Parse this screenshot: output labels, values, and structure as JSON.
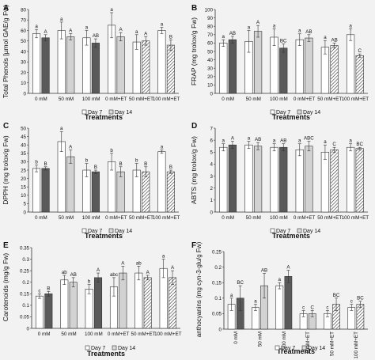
{
  "chart_data": [
    {
      "panel": "A",
      "type": "bar",
      "categories": [
        "0 mM",
        "50 mM",
        "100 mM",
        "0 mM+ET",
        "50 mM+ET",
        "100 mM+ET"
      ],
      "xlabel": "Treatments",
      "ylabel": "Total Phenols [µmol GAE/g Fw)",
      "ylim": [
        0,
        80
      ],
      "yticks": [
        "0",
        "10",
        "20",
        "30",
        "40",
        "50",
        "60",
        "70",
        "80"
      ],
      "series": [
        {
          "name": "Day 7",
          "values": [
            57,
            60,
            53,
            65,
            49,
            60
          ],
          "errors": [
            4,
            8,
            7,
            12,
            7,
            3
          ],
          "letters": [
            "a",
            "a",
            "a",
            "a",
            "a",
            "a"
          ]
        },
        {
          "name": "Day 14",
          "values": [
            53,
            54,
            48,
            54,
            50,
            46
          ],
          "errors": [
            3,
            3,
            4,
            4,
            4,
            5
          ],
          "letters": [
            "A",
            "A",
            "AB",
            "A",
            "A",
            "B"
          ]
        }
      ]
    },
    {
      "panel": "B",
      "type": "bar",
      "categories": [
        "0 mM",
        "50 mM",
        "100 mM",
        "0 mM+ET",
        "50 mM+ET",
        "100 mM+ET"
      ],
      "xlabel": "Treatments",
      "ylabel": "FRAP (mg trolox/g Fw)",
      "ylim": [
        0,
        100
      ],
      "yticks": [
        "0",
        "10",
        "20",
        "30",
        "40",
        "50",
        "60",
        "70",
        "80",
        "90",
        "100"
      ],
      "series": [
        {
          "name": "Day 7",
          "values": [
            60,
            62,
            67,
            64,
            55,
            70
          ],
          "errors": [
            4,
            13,
            10,
            7,
            8,
            7
          ],
          "letters": [
            "a",
            "a",
            "a",
            "a",
            "a",
            "a"
          ]
        },
        {
          "name": "Day 14",
          "values": [
            64,
            74,
            54,
            66,
            57,
            45
          ],
          "errors": [
            4,
            7,
            5,
            4,
            3,
            2
          ],
          "letters": [
            "AB",
            "A",
            "BC",
            "AB",
            "AB",
            "C"
          ]
        }
      ]
    },
    {
      "panel": "C",
      "type": "bar",
      "categories": [
        "0 mM",
        "50 mM",
        "100 mM",
        "0 mM+ET",
        "50 mM+ET",
        "100 mM+ET"
      ],
      "xlabel": "Treatments",
      "ylabel": "DPPH (mg trolox/g Fw)",
      "ylim": [
        0,
        50
      ],
      "yticks": [
        "0",
        "5",
        "10",
        "15",
        "20",
        "25",
        "30",
        "35",
        "40",
        "45",
        "50"
      ],
      "series": [
        {
          "name": "Day 7",
          "values": [
            26,
            42,
            25,
            30,
            25,
            36
          ],
          "errors": [
            2,
            6,
            4,
            5,
            4,
            1
          ],
          "letters": [
            "b",
            "a",
            "b",
            "b",
            "b",
            "a"
          ]
        },
        {
          "name": "Day 14",
          "values": [
            26,
            33,
            24,
            24,
            24,
            24
          ],
          "errors": [
            1,
            4,
            1,
            3,
            3,
            1
          ],
          "letters": [
            "B",
            "A",
            "B",
            "B",
            "B",
            "B"
          ]
        }
      ]
    },
    {
      "panel": "D",
      "type": "bar",
      "categories": [
        "0 mM",
        "50 mM",
        "100 mM",
        "0 mM+ET",
        "50 mM+ET",
        "100 mM+ET"
      ],
      "xlabel": "Treatments",
      "ylabel": "ABTS (mg trolox/g Fw)",
      "ylim": [
        0,
        7
      ],
      "yticks": [
        "0",
        "1",
        "2",
        "3",
        "4",
        "5",
        "6",
        "7"
      ],
      "series": [
        {
          "name": "Day 7",
          "values": [
            5.4,
            5.6,
            5.4,
            5.2,
            5.0,
            5.4
          ],
          "errors": [
            0.3,
            0.3,
            0.3,
            0.5,
            0.6,
            0.3
          ],
          "letters": [
            "a",
            "a",
            "a",
            "a",
            "a",
            "a"
          ]
        },
        {
          "name": "Day 14",
          "values": [
            5.6,
            5.5,
            5.4,
            5.5,
            5.2,
            5.3
          ],
          "errors": [
            0.3,
            0.3,
            0.3,
            0.4,
            0.2,
            0.1
          ],
          "letters": [
            "A",
            "AB",
            "AB",
            "ABC",
            "C",
            "BC"
          ]
        }
      ]
    },
    {
      "panel": "E",
      "type": "bar",
      "categories": [
        "0 mM",
        "50 mM",
        "100 mM",
        "0 mM+ET",
        "50 mM+ET",
        "100 mM+ET"
      ],
      "xlabel": "Treatments",
      "ylabel": "Carotenoids (mg/g Fw)",
      "ylim": [
        0,
        0.35
      ],
      "yticks": [
        "0",
        "0.05",
        "0.1",
        "0.15",
        "0.2",
        "0.25",
        "0.3",
        "0.35"
      ],
      "series": [
        {
          "name": "Day 7",
          "values": [
            0.14,
            0.21,
            0.17,
            0.18,
            0.24,
            0.26
          ],
          "errors": [
            0.01,
            0.02,
            0.02,
            0.04,
            0.03,
            0.04
          ],
          "letters": [
            "c",
            "ab",
            "b",
            "abc",
            "ab",
            "a"
          ]
        },
        {
          "name": "Day 14",
          "values": [
            0.15,
            0.2,
            0.22,
            0.24,
            0.22,
            0.22
          ],
          "errors": [
            0.01,
            0.02,
            0.02,
            0.03,
            0.01,
            0.03
          ],
          "letters": [
            "B",
            "AB",
            "A",
            "A",
            "A",
            "A"
          ]
        }
      ]
    },
    {
      "panel": "F",
      "type": "bar",
      "categories": [
        "0 mM",
        "50 mM",
        "100 mM",
        "0 mM+ET",
        "50 mM+ET",
        "100 mM+ET"
      ],
      "xlabel": "Treatments",
      "ylabel": "anthocyanins (mg cyn-3-glu/g Fw)",
      "ylim": [
        0,
        0.25
      ],
      "yticks": [
        "0",
        "0.05",
        "0.1",
        "0.15",
        "0.2",
        "0.25"
      ],
      "series": [
        {
          "name": "Day 7",
          "values": [
            0.08,
            0.07,
            0.14,
            0.05,
            0.05,
            0.07
          ],
          "errors": [
            0.02,
            0.01,
            0.01,
            0.01,
            0.01,
            0.01
          ],
          "letters": [
            "a",
            "a",
            "a",
            "c",
            "c",
            "c"
          ]
        },
        {
          "name": "Day 14",
          "values": [
            0.1,
            0.14,
            0.17,
            0.05,
            0.08,
            0.08
          ],
          "errors": [
            0.04,
            0.04,
            0.02,
            0.01,
            0.02,
            0.01
          ],
          "letters": [
            "BC",
            "AB",
            "A",
            "C",
            "BC",
            "BC"
          ]
        }
      ]
    }
  ]
}
